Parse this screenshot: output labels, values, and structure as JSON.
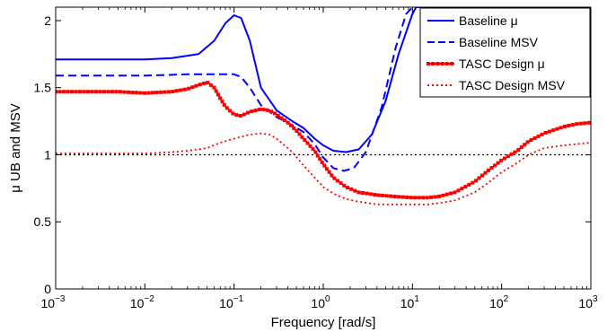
{
  "chart_data": {
    "type": "line",
    "title": "",
    "xlabel": "Frequency [rad/s]",
    "ylabel": "μ UB and MSV",
    "xscale": "log",
    "xlim": [
      0.001,
      1000
    ],
    "ylim": [
      0,
      2.1
    ],
    "x_ticks": [
      {
        "value": 0.001,
        "base": "10",
        "exp": "−3"
      },
      {
        "value": 0.01,
        "base": "10",
        "exp": "−2"
      },
      {
        "value": 0.1,
        "base": "10",
        "exp": "−1"
      },
      {
        "value": 1,
        "base": "10",
        "exp": "0"
      },
      {
        "value": 10,
        "base": "10",
        "exp": "1"
      },
      {
        "value": 100,
        "base": "10",
        "exp": "2"
      },
      {
        "value": 1000,
        "base": "10",
        "exp": "3"
      }
    ],
    "y_ticks": [
      {
        "value": 0,
        "label": "0"
      },
      {
        "value": 0.5,
        "label": "0.5"
      },
      {
        "value": 1,
        "label": "1"
      },
      {
        "value": 1.5,
        "label": "1.5"
      },
      {
        "value": 2,
        "label": "2"
      }
    ],
    "grid": false,
    "legend_position": "top-right",
    "reference_line": {
      "y": 1,
      "color": "#000000",
      "style": "dotted"
    },
    "series": [
      {
        "name": "Baseline μ",
        "color": "#0000ff",
        "style": "solid",
        "marker": "none",
        "x": [
          0.001,
          0.002,
          0.005,
          0.01,
          0.02,
          0.04,
          0.06,
          0.08,
          0.1,
          0.12,
          0.15,
          0.2,
          0.3,
          0.45,
          0.6,
          0.8,
          1,
          1.3,
          1.8,
          2.5,
          3.5,
          5,
          7,
          10,
          11,
          12
        ],
        "y": [
          1.71,
          1.71,
          1.71,
          1.71,
          1.72,
          1.75,
          1.85,
          1.98,
          2.04,
          2.02,
          1.85,
          1.5,
          1.33,
          1.25,
          1.2,
          1.12,
          1.07,
          1.03,
          1.02,
          1.04,
          1.15,
          1.4,
          1.75,
          2.05,
          2.1,
          2.1
        ]
      },
      {
        "name": "Baseline MSV",
        "color": "#0000ff",
        "style": "dashed",
        "marker": "none",
        "x": [
          0.001,
          0.003,
          0.01,
          0.03,
          0.06,
          0.1,
          0.12,
          0.15,
          0.2,
          0.3,
          0.45,
          0.6,
          0.8,
          1,
          1.3,
          1.7,
          2.2,
          3,
          4.5,
          6.5,
          8.5,
          10
        ],
        "y": [
          1.59,
          1.59,
          1.59,
          1.6,
          1.6,
          1.6,
          1.58,
          1.5,
          1.37,
          1.28,
          1.22,
          1.17,
          1.08,
          0.98,
          0.9,
          0.88,
          0.9,
          1.02,
          1.35,
          1.8,
          2.05,
          2.1
        ]
      },
      {
        "name": "TASC Design μ",
        "color": "#ff0000",
        "style": "solid",
        "marker": "square",
        "x": [
          0.001,
          0.002,
          0.005,
          0.01,
          0.02,
          0.03,
          0.04,
          0.05,
          0.06,
          0.07,
          0.08,
          0.1,
          0.12,
          0.15,
          0.2,
          0.25,
          0.3,
          0.4,
          0.5,
          0.6,
          0.8,
          1,
          1.3,
          1.8,
          2.5,
          4,
          6,
          10,
          15,
          20,
          30,
          50,
          70,
          100,
          150,
          200,
          300,
          500,
          700,
          1000
        ],
        "y": [
          1.47,
          1.47,
          1.47,
          1.46,
          1.47,
          1.49,
          1.52,
          1.54,
          1.5,
          1.42,
          1.36,
          1.3,
          1.29,
          1.32,
          1.34,
          1.33,
          1.3,
          1.24,
          1.18,
          1.12,
          1.03,
          0.93,
          0.83,
          0.76,
          0.72,
          0.7,
          0.69,
          0.68,
          0.68,
          0.69,
          0.72,
          0.8,
          0.88,
          0.96,
          1.03,
          1.1,
          1.16,
          1.21,
          1.23,
          1.24
        ]
      },
      {
        "name": "TASC Design MSV",
        "color": "#ff0000",
        "style": "dotted",
        "marker": "none",
        "x": [
          0.001,
          0.003,
          0.01,
          0.02,
          0.03,
          0.05,
          0.07,
          0.1,
          0.15,
          0.2,
          0.25,
          0.3,
          0.45,
          0.6,
          0.8,
          1,
          1.3,
          1.8,
          2.5,
          4,
          6,
          10,
          15,
          20,
          30,
          50,
          70,
          100,
          150,
          200,
          300,
          500,
          700,
          1000
        ],
        "y": [
          1.01,
          1.01,
          1.01,
          1.02,
          1.03,
          1.05,
          1.09,
          1.12,
          1.15,
          1.16,
          1.15,
          1.12,
          1.02,
          0.92,
          0.83,
          0.76,
          0.71,
          0.67,
          0.65,
          0.63,
          0.63,
          0.63,
          0.63,
          0.64,
          0.66,
          0.72,
          0.79,
          0.87,
          0.94,
          1.0,
          1.05,
          1.07,
          1.08,
          1.09
        ]
      }
    ]
  }
}
